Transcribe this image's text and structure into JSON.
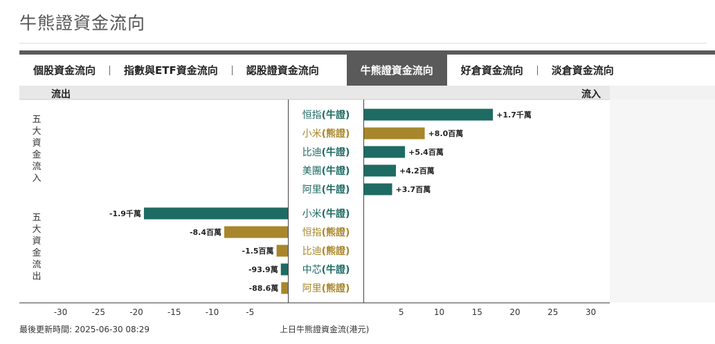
{
  "page_title": "牛熊證資金流向",
  "tabs": [
    {
      "label": "個股資金流向",
      "active": false
    },
    {
      "label": "指數與ETF資金流向",
      "active": false
    },
    {
      "label": "認股證資金流向",
      "active": false
    },
    {
      "label": "牛熊證資金流向",
      "active": true
    },
    {
      "label": "好倉資金流向",
      "active": false
    },
    {
      "label": "淡倉資金流向",
      "active": false
    }
  ],
  "header": {
    "outflow_label": "流出",
    "inflow_label": "流入"
  },
  "group_labels": {
    "inflow": "五大資金流入",
    "outflow": "五大資金流出"
  },
  "colors": {
    "bull": "#1e6b63",
    "bear": "#a8862b"
  },
  "chart_data": {
    "type": "bar",
    "orientation": "horizontal-diverging",
    "unit": "百萬",
    "xlim": [
      -30,
      30
    ],
    "x_ticks": [
      -30,
      -25,
      -20,
      -15,
      -10,
      -5,
      5,
      10,
      15,
      20,
      25,
      30
    ],
    "inflow": [
      {
        "name": "恒指",
        "type": "牛證",
        "kind": "bull",
        "value": 17,
        "label": "+1.7千萬"
      },
      {
        "name": "小米",
        "type": "熊證",
        "kind": "bear",
        "value": 8.0,
        "label": "+8.0百萬"
      },
      {
        "name": "比迪",
        "type": "牛證",
        "kind": "bull",
        "value": 5.4,
        "label": "+5.4百萬"
      },
      {
        "name": "美團",
        "type": "牛證",
        "kind": "bull",
        "value": 4.2,
        "label": "+4.2百萬"
      },
      {
        "name": "阿里",
        "type": "牛證",
        "kind": "bull",
        "value": 3.7,
        "label": "+3.7百萬"
      }
    ],
    "outflow": [
      {
        "name": "小米",
        "type": "牛證",
        "kind": "bull",
        "value": -19,
        "label": "-1.9千萬"
      },
      {
        "name": "恒指",
        "type": "熊證",
        "kind": "bear",
        "value": -8.4,
        "label": "-8.4百萬"
      },
      {
        "name": "比迪",
        "type": "熊證",
        "kind": "bear",
        "value": -1.5,
        "label": "-1.5百萬"
      },
      {
        "name": "中芯",
        "type": "牛證",
        "kind": "bull",
        "value": -0.939,
        "label": "-93.9萬"
      },
      {
        "name": "阿里",
        "type": "熊證",
        "kind": "bear",
        "value": -0.886,
        "label": "-88.6萬"
      }
    ]
  },
  "footer": {
    "updated": "最後更新時間: 2025-06-30 08:29",
    "caption": "上日牛熊證資金流(港元)"
  }
}
